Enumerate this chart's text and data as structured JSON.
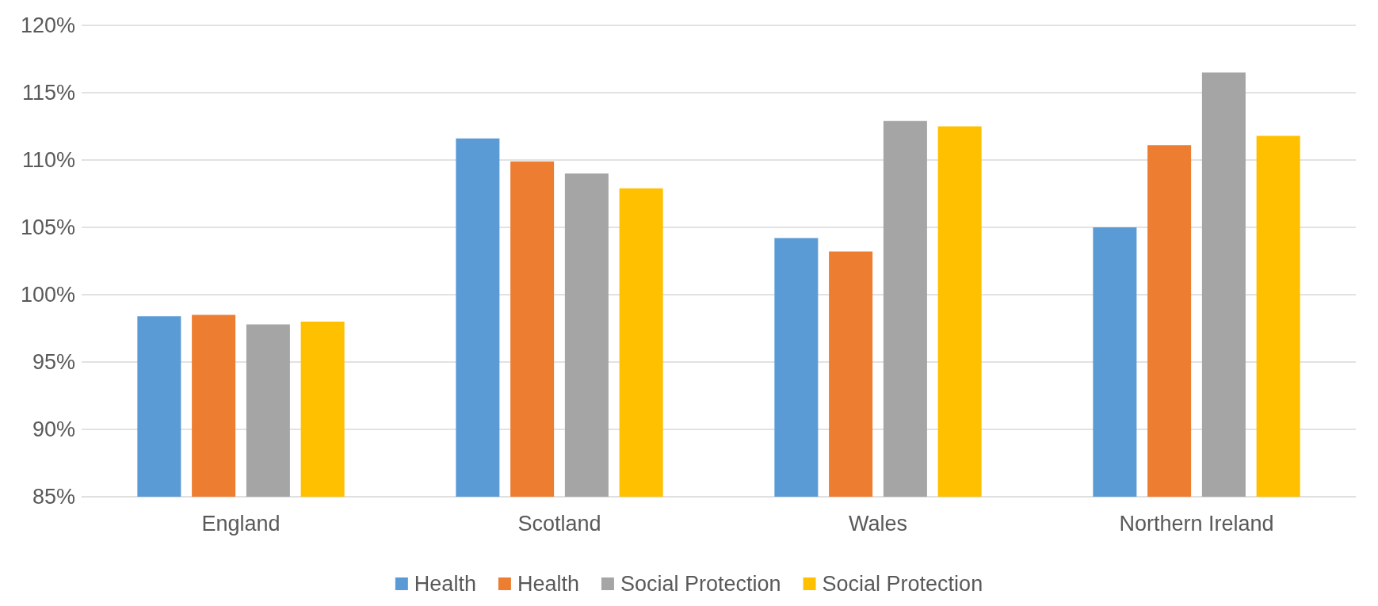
{
  "chart_data": {
    "type": "bar",
    "categories": [
      "England",
      "Scotland",
      "Wales",
      "Northern Ireland"
    ],
    "series": [
      {
        "name": "Health",
        "color": "#5b9bd5",
        "values": [
          98.4,
          111.6,
          104.2,
          105.0
        ]
      },
      {
        "name": "Health",
        "color": "#ed7d31",
        "values": [
          98.5,
          109.9,
          103.2,
          111.1
        ]
      },
      {
        "name": "Social Protection",
        "color": "#a5a5a5",
        "values": [
          97.8,
          109.0,
          112.9,
          116.5
        ]
      },
      {
        "name": "Social Protection",
        "color": "#ffc000",
        "values": [
          98.0,
          107.9,
          112.5,
          111.8
        ]
      }
    ],
    "ylim": [
      85,
      120
    ],
    "yticks": [
      {
        "value": 85,
        "label": "85%"
      },
      {
        "value": 90,
        "label": "90%"
      },
      {
        "value": 95,
        "label": "95%"
      },
      {
        "value": 100,
        "label": "100%"
      },
      {
        "value": 105,
        "label": "105%"
      },
      {
        "value": 110,
        "label": "110%"
      },
      {
        "value": 115,
        "label": "115%"
      },
      {
        "value": 120,
        "label": "120%"
      }
    ],
    "grid": "y",
    "legend": "bottom"
  }
}
